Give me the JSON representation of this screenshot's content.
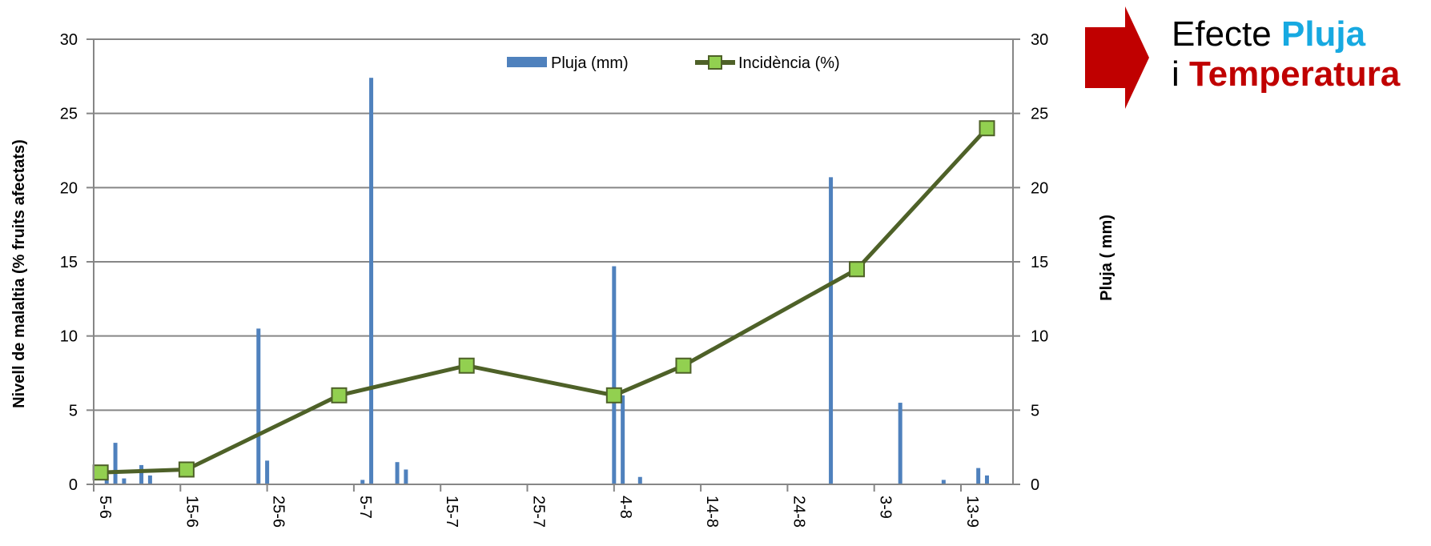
{
  "colors": {
    "rain": "#4f81bd",
    "incidence_line": "#4e6128",
    "incidence_marker": "#92d050",
    "gridline": "#868686",
    "arrow": "#c00000",
    "pluja_word": "#17a9e1",
    "temperatura_word": "#c00000"
  },
  "callout": {
    "word1": "Efecte",
    "word2": "Pluja",
    "word3": "i",
    "word4": "Temperatura",
    "arrow_icon": "right-arrow-icon"
  },
  "chart_data": {
    "type": "bar+line",
    "title": "",
    "ylabel_left": "Nivell de malaltia (% fruits afectats)",
    "ylabel_right": "Pluja ( mm)",
    "xlabel": "",
    "ylim_left": [
      0,
      30
    ],
    "ylim_right": [
      0,
      30
    ],
    "yticks": [
      "0",
      "5",
      "10",
      "15",
      "20",
      "25",
      "30"
    ],
    "x_tick_labels": [
      "5-6",
      "15-6",
      "25-6",
      "5-7",
      "15-7",
      "25-7",
      "4-8",
      "14-8",
      "24-8",
      "3-9",
      "13-9"
    ],
    "x_range_days": [
      0,
      106
    ],
    "grid": true,
    "legend_position": "top-center",
    "series": [
      {
        "name": "Pluja (mm)",
        "type": "bar",
        "axis": "right",
        "points": [
          {
            "x": 1.5,
            "y": 0.6
          },
          {
            "x": 2.5,
            "y": 2.8
          },
          {
            "x": 3.5,
            "y": 0.4
          },
          {
            "x": 5.5,
            "y": 1.3
          },
          {
            "x": 6.5,
            "y": 0.6
          },
          {
            "x": 19,
            "y": 10.5
          },
          {
            "x": 20,
            "y": 1.6
          },
          {
            "x": 31,
            "y": 0.3
          },
          {
            "x": 32,
            "y": 27.4
          },
          {
            "x": 35,
            "y": 1.5
          },
          {
            "x": 36,
            "y": 1.0
          },
          {
            "x": 60,
            "y": 14.7
          },
          {
            "x": 61,
            "y": 6.0
          },
          {
            "x": 63,
            "y": 0.5
          },
          {
            "x": 85,
            "y": 20.7
          },
          {
            "x": 93,
            "y": 5.5
          },
          {
            "x": 98,
            "y": 0.3
          },
          {
            "x": 102,
            "y": 1.1
          },
          {
            "x": 103,
            "y": 0.6
          }
        ]
      },
      {
        "name": "Incidència (%)",
        "type": "line",
        "axis": "left",
        "points": [
          {
            "x": 0.8,
            "y": 0.8
          },
          {
            "x": 10.7,
            "y": 1.0
          },
          {
            "x": 28.3,
            "y": 6.0
          },
          {
            "x": 43,
            "y": 8.0
          },
          {
            "x": 60,
            "y": 6.0
          },
          {
            "x": 68,
            "y": 8.0
          },
          {
            "x": 88,
            "y": 14.5
          },
          {
            "x": 103,
            "y": 24.0
          }
        ]
      }
    ]
  }
}
